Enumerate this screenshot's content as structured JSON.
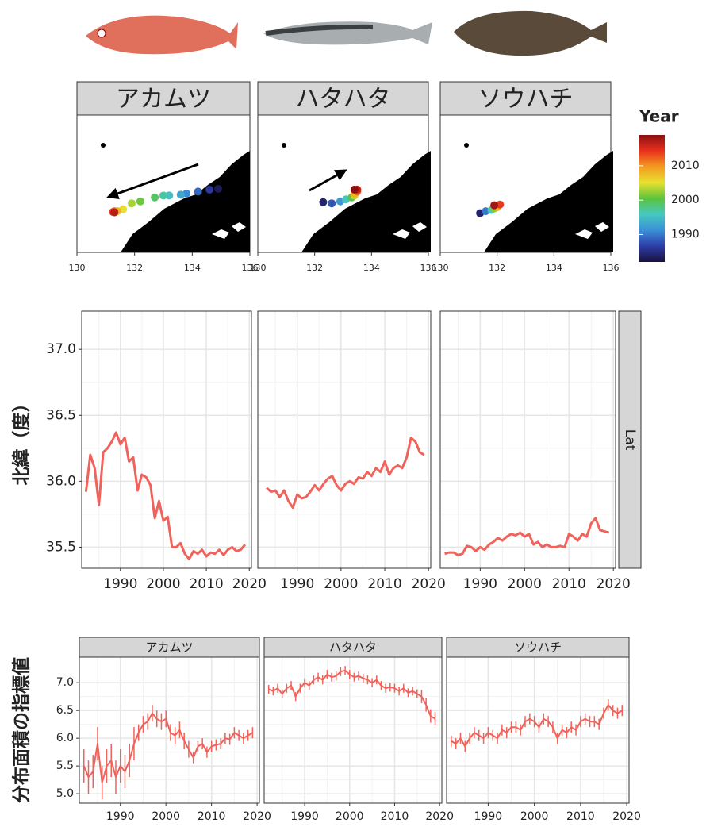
{
  "chart_data": [
    {
      "type": "scatter",
      "xlim": [
        130,
        136
      ],
      "xticks": [
        130,
        132,
        134,
        136
      ],
      "ylim": [
        34.5,
        38
      ],
      "facets": [
        {
          "title": "アカムツ",
          "x": [
            134.9,
            134.6,
            134.2,
            133.8,
            133.6,
            133.2,
            133.0,
            132.7,
            132.2,
            131.9,
            131.6,
            131.4,
            131.3,
            131.25,
            131.3
          ],
          "y": [
            36.12,
            36.1,
            36.05,
            36.0,
            35.97,
            35.95,
            35.95,
            35.9,
            35.8,
            35.75,
            35.6,
            35.55,
            35.55,
            35.53,
            35.52
          ],
          "year": [
            1983,
            1986,
            1989,
            1991,
            1993,
            1995,
            1997,
            1999,
            2001,
            2003,
            2005,
            2008,
            2011,
            2014,
            2017
          ]
        },
        {
          "title": "ハタハタ",
          "x": [
            132.3,
            132.6,
            132.9,
            133.1,
            133.3,
            133.4,
            133.4,
            133.5,
            133.5,
            133.4
          ],
          "y": [
            35.78,
            35.75,
            35.8,
            35.85,
            35.9,
            35.95,
            36.0,
            36.05,
            36.1,
            36.1
          ],
          "year": [
            1984,
            1988,
            1992,
            1996,
            2000,
            2004,
            2008,
            2012,
            2016,
            2019
          ]
        },
        {
          "title": "ソウハチ",
          "x": [
            131.4,
            131.6,
            131.8,
            131.9,
            132.0,
            132.1,
            131.9
          ],
          "y": [
            35.5,
            35.55,
            35.58,
            35.62,
            35.65,
            35.72,
            35.7
          ],
          "year": [
            1984,
            1990,
            1996,
            2002,
            2008,
            2014,
            2018
          ]
        }
      ],
      "colorbar": {
        "title": "Year",
        "lim": [
          1982,
          2019
        ],
        "ticks": [
          1990,
          2000,
          2010
        ],
        "colors": [
          "#1a1040",
          "#2c3ea8",
          "#3b8fd8",
          "#46c8c0",
          "#5cc43c",
          "#e8e030",
          "#f39a20",
          "#e8301c",
          "#8c1010"
        ]
      }
    },
    {
      "type": "line",
      "ylabel": "北緯（度）",
      "strip": "Lat",
      "color": "#f0625a",
      "grid": true,
      "x": [
        1982,
        1983,
        1984,
        1985,
        1986,
        1987,
        1988,
        1989,
        1990,
        1991,
        1992,
        1993,
        1994,
        1995,
        1996,
        1997,
        1998,
        1999,
        2000,
        2001,
        2002,
        2003,
        2004,
        2005,
        2006,
        2007,
        2008,
        2009,
        2010,
        2011,
        2012,
        2013,
        2014,
        2015,
        2016,
        2017,
        2018,
        2019
      ],
      "xlim": [
        1981,
        2020.5
      ],
      "xticks": [
        1990,
        2000,
        2010,
        2020
      ],
      "ylim": [
        35.34,
        37.29
      ],
      "yticks": [
        {
          "value": 35.5,
          "label": "35.5"
        },
        {
          "value": 36,
          "label": "36.0"
        },
        36.5,
        {
          "value": 37,
          "label": "37.0"
        }
      ],
      "facets": [
        {
          "values": [
            35.92,
            36.2,
            36.1,
            35.82,
            36.22,
            36.25,
            36.3,
            36.37,
            36.28,
            36.33,
            36.15,
            36.18,
            35.93,
            36.05,
            36.03,
            35.97,
            35.72,
            35.85,
            35.7,
            35.73,
            35.5,
            35.5,
            35.53,
            35.45,
            35.41,
            35.47,
            35.45,
            35.48,
            35.43,
            35.46,
            35.45,
            35.48,
            35.44,
            35.48,
            35.5,
            35.47,
            35.48,
            35.52
          ]
        },
        {
          "values": [
            null,
            35.95,
            35.92,
            35.93,
            35.88,
            35.93,
            35.85,
            35.8,
            35.9,
            35.87,
            35.88,
            35.92,
            35.97,
            35.93,
            35.98,
            36.02,
            36.04,
            35.97,
            35.93,
            35.98,
            36.0,
            35.98,
            36.03,
            36.02,
            36.07,
            36.04,
            36.1,
            36.07,
            36.15,
            36.05,
            36.1,
            36.12,
            36.1,
            36.18,
            36.33,
            36.3,
            36.22,
            36.2
          ]
        },
        {
          "values": [
            35.45,
            35.46,
            35.46,
            35.44,
            35.45,
            35.51,
            35.5,
            35.47,
            35.5,
            35.48,
            35.52,
            35.54,
            35.57,
            35.55,
            35.58,
            35.6,
            35.59,
            35.61,
            35.58,
            35.6,
            35.52,
            35.54,
            35.5,
            35.52,
            35.5,
            35.5,
            35.51,
            35.5,
            35.6,
            35.58,
            35.55,
            35.6,
            35.58,
            35.68,
            35.72,
            35.63,
            35.62,
            35.61
          ]
        }
      ]
    },
    {
      "type": "errorline",
      "ylabel": "分布面積の指標値",
      "color": "#f0625a",
      "grid": true,
      "x": [
        1982,
        1983,
        1984,
        1985,
        1986,
        1987,
        1988,
        1989,
        1990,
        1991,
        1992,
        1993,
        1994,
        1995,
        1996,
        1997,
        1998,
        1999,
        2000,
        2001,
        2002,
        2003,
        2004,
        2005,
        2006,
        2007,
        2008,
        2009,
        2010,
        2011,
        2012,
        2013,
        2014,
        2015,
        2016,
        2017,
        2018,
        2019
      ],
      "xlim": [
        1981,
        2020.5
      ],
      "xticks": [
        1990,
        2000,
        2010,
        2020
      ],
      "ylim": [
        4.83,
        7.46
      ],
      "yticks": [
        {
          "value": 5,
          "label": "5.0"
        },
        5.5,
        {
          "value": 6,
          "label": "6.0"
        },
        6.5,
        {
          "value": 7,
          "label": "7.0"
        }
      ],
      "facets": [
        {
          "title": "アカムツ",
          "values": [
            5.5,
            5.3,
            5.4,
            5.9,
            5.2,
            5.5,
            5.6,
            5.3,
            5.5,
            5.4,
            5.6,
            5.9,
            6.1,
            6.25,
            6.3,
            6.45,
            6.35,
            6.3,
            6.35,
            6.1,
            6.05,
            6.15,
            5.95,
            5.8,
            5.65,
            5.85,
            5.9,
            5.75,
            5.85,
            5.88,
            5.9,
            6.0,
            5.98,
            6.1,
            6.05,
            6.0,
            6.05,
            6.1
          ],
          "errors": [
            0.3,
            0.3,
            0.3,
            0.3,
            0.3,
            0.3,
            0.3,
            0.3,
            0.3,
            0.3,
            0.3,
            0.3,
            0.15,
            0.15,
            0.15,
            0.15,
            0.15,
            0.15,
            0.15,
            0.15,
            0.15,
            0.15,
            0.15,
            0.15,
            0.1,
            0.1,
            0.1,
            0.1,
            0.1,
            0.1,
            0.1,
            0.1,
            0.1,
            0.1,
            0.1,
            0.1,
            0.1,
            0.1
          ]
        },
        {
          "title": "ハタハタ",
          "values": [
            6.88,
            6.85,
            6.9,
            6.8,
            6.9,
            6.95,
            6.75,
            6.9,
            7.0,
            6.95,
            7.05,
            7.1,
            7.05,
            7.15,
            7.1,
            7.12,
            7.2,
            7.22,
            7.15,
            7.1,
            7.12,
            7.08,
            7.05,
            7.0,
            7.05,
            6.95,
            6.9,
            6.92,
            6.9,
            6.85,
            6.9,
            6.82,
            6.85,
            6.8,
            6.75,
            6.6,
            6.4,
            6.35
          ],
          "errors": [
            0.08,
            0.08,
            0.08,
            0.08,
            0.08,
            0.08,
            0.08,
            0.08,
            0.08,
            0.08,
            0.08,
            0.08,
            0.08,
            0.08,
            0.08,
            0.08,
            0.08,
            0.08,
            0.08,
            0.08,
            0.08,
            0.08,
            0.08,
            0.08,
            0.08,
            0.08,
            0.08,
            0.08,
            0.08,
            0.08,
            0.08,
            0.08,
            0.08,
            0.08,
            0.12,
            0.12,
            0.12,
            0.12
          ]
        },
        {
          "title": "ソウハチ",
          "values": [
            5.95,
            5.9,
            6.0,
            5.85,
            6.0,
            6.1,
            6.05,
            6.0,
            6.1,
            6.05,
            6.0,
            6.15,
            6.1,
            6.2,
            6.2,
            6.15,
            6.3,
            6.35,
            6.3,
            6.2,
            6.35,
            6.3,
            6.2,
            6.0,
            6.15,
            6.1,
            6.2,
            6.15,
            6.3,
            6.35,
            6.3,
            6.3,
            6.25,
            6.45,
            6.6,
            6.5,
            6.45,
            6.5
          ],
          "errors": [
            0.1,
            0.1,
            0.1,
            0.1,
            0.1,
            0.1,
            0.1,
            0.1,
            0.1,
            0.1,
            0.1,
            0.1,
            0.1,
            0.1,
            0.1,
            0.1,
            0.1,
            0.1,
            0.1,
            0.1,
            0.1,
            0.1,
            0.1,
            0.1,
            0.1,
            0.1,
            0.1,
            0.1,
            0.1,
            0.1,
            0.1,
            0.1,
            0.1,
            0.1,
            0.1,
            0.1,
            0.1,
            0.1
          ]
        }
      ]
    }
  ]
}
